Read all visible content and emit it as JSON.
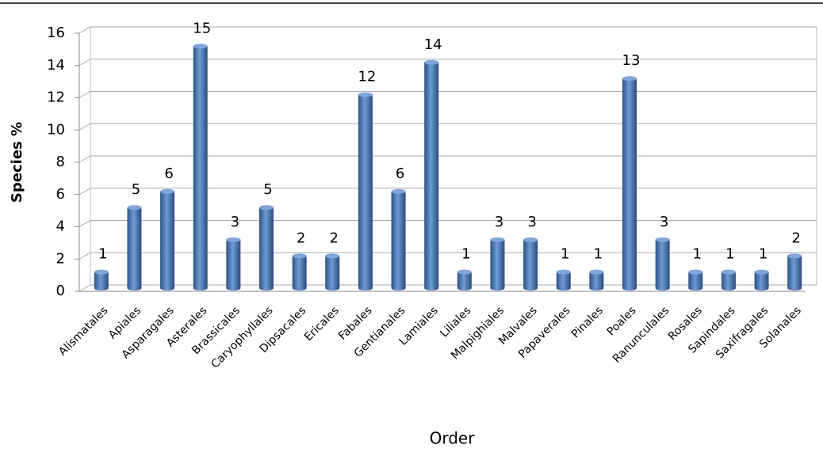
{
  "chart_data": {
    "type": "bar",
    "y_label": "Species %",
    "x_label": "Order",
    "categories": [
      "Alismatales",
      "Apiales",
      "Asparagales",
      "Asterales",
      "Brassicales",
      "Caryophyllales",
      "Dipsacales",
      "Ericales",
      "Fabales",
      "Gentianales",
      "Lamiales",
      "Liliales",
      "Malpighiales",
      "Malvales",
      "Papaverales",
      "Pinales",
      "Poales",
      "Ranunculales",
      "Rosales",
      "Sapindales",
      "Saxifragales",
      "Solanales"
    ],
    "values": [
      1,
      5,
      6,
      15,
      3,
      5,
      2,
      2,
      12,
      6,
      14,
      1,
      3,
      3,
      1,
      1,
      13,
      3,
      1,
      1,
      1,
      2
    ],
    "color": "#4f81bd",
    "ylim": [
      0,
      16
    ],
    "yticks": [
      0,
      2,
      4,
      6,
      8,
      10,
      12,
      14,
      16
    ],
    "grid": true
  }
}
